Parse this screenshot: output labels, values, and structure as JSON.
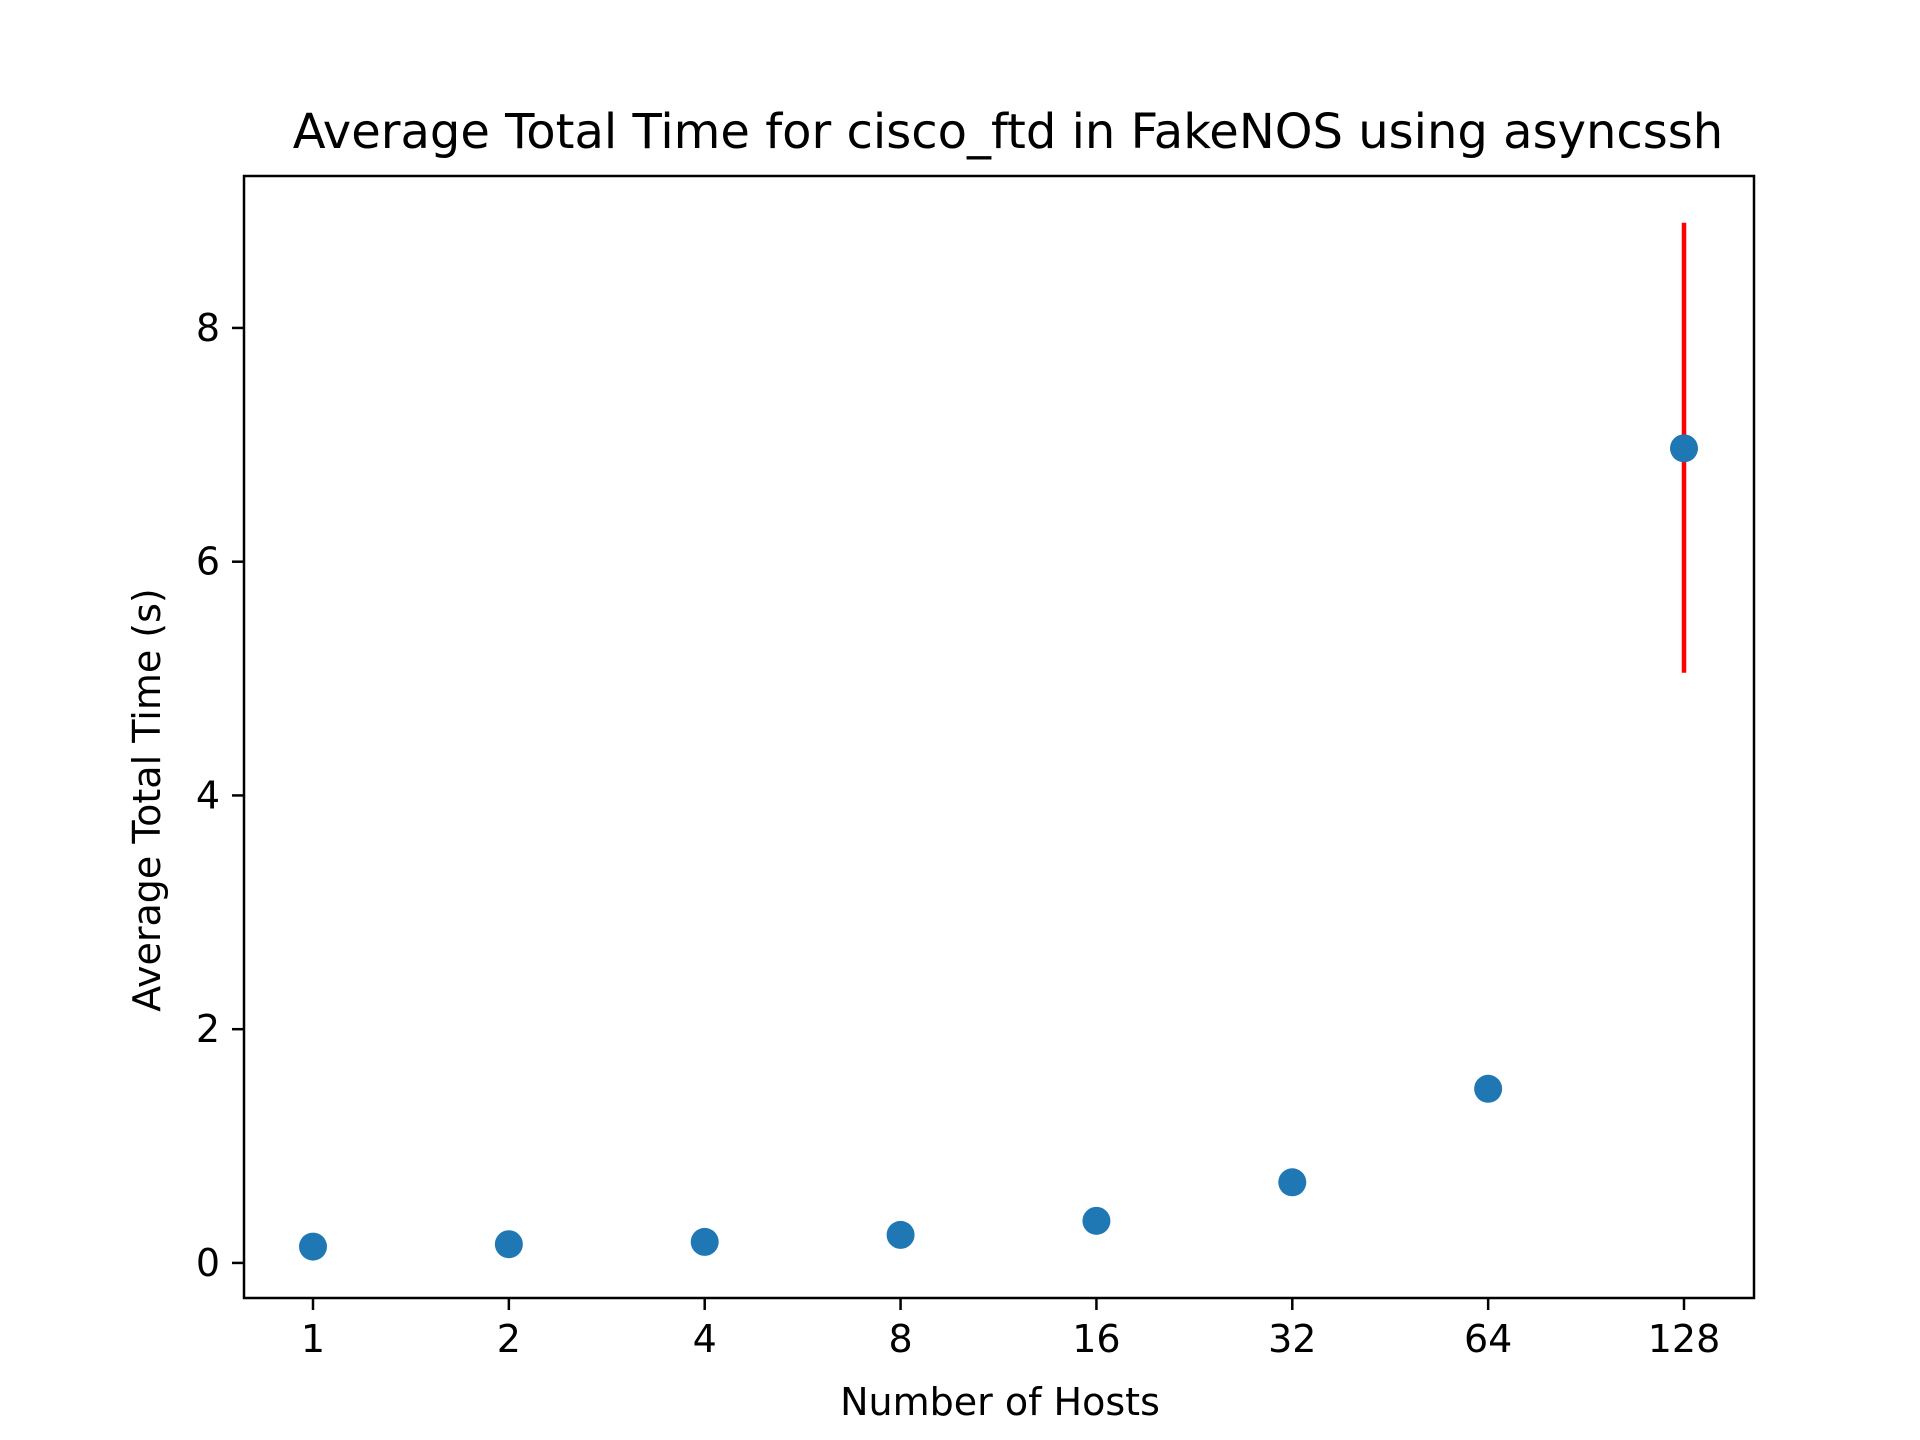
{
  "chart_data": {
    "type": "scatter",
    "title": "Average Total Time for cisco_ftd in FakeNOS using asyncssh",
    "xlabel": "Number of Hosts",
    "ylabel": "Average Total Time (s)",
    "categories": [
      "1",
      "2",
      "4",
      "8",
      "16",
      "32",
      "64",
      "128"
    ],
    "values": [
      0.14,
      0.16,
      0.18,
      0.24,
      0.36,
      0.69,
      1.49,
      6.97
    ],
    "error_bars": [
      {
        "category": "128",
        "low": 5.05,
        "high": 8.9
      }
    ],
    "ylim": [
      -0.3,
      9.3
    ],
    "yticks": [
      0,
      2,
      4,
      6,
      8
    ],
    "grid": false,
    "colors": {
      "marker": "#1f77b4",
      "error_bar": "#ff0000",
      "axes": "#000000"
    }
  }
}
